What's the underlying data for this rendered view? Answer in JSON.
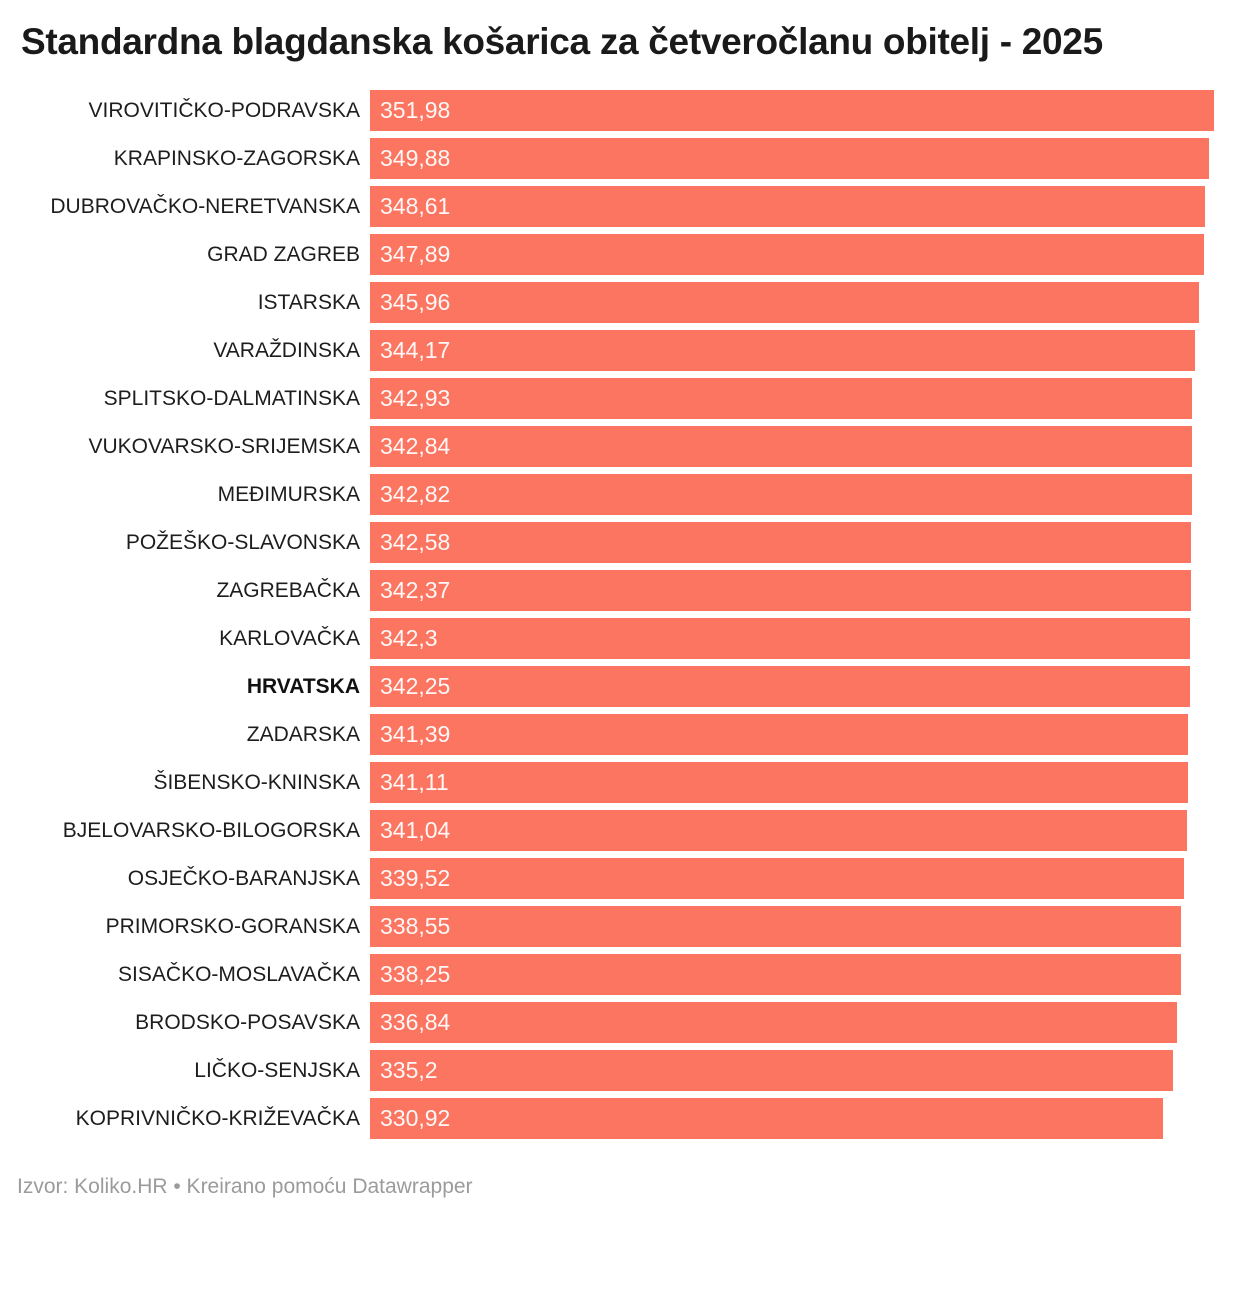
{
  "header": {
    "title": "Standardna blagdanska košarica za četveročlanu obitelj - 2025"
  },
  "footer": {
    "attribution": "Izvor: Koliko.HR • Kreirano pomoću Datawrapper"
  },
  "colors": {
    "bar": "#fc7561",
    "title_text": "#1a1a1a",
    "label_text": "#1d1d1d",
    "value_text": "#ffffff",
    "footer_text": "#9b9b9b"
  },
  "chart_data": {
    "type": "bar",
    "orientation": "horizontal",
    "title": "Standardna blagdanska košarica za četveročlanu obitelj - 2025",
    "xlabel": "",
    "ylabel": "",
    "xlim": [
      0,
      351.98
    ],
    "grid": false,
    "legend": false,
    "bar_color": "#fc7561",
    "bold_category": "HRVATSKA",
    "categories": [
      "VIROVITIČKO-PODRAVSKA",
      "KRAPINSKO-ZAGORSKA",
      "DUBROVAČKO-NERETVANSKA",
      "GRAD ZAGREB",
      "ISTARSKA",
      "VARAŽDINSKA",
      "SPLITSKO-DALMATINSKA",
      "VUKOVARSKO-SRIJEMSKA",
      "MEĐIMURSKA",
      "POŽEŠKO-SLAVONSKA",
      "ZAGREBAČKA",
      "KARLOVAČKA",
      "HRVATSKA",
      "ZADARSKA",
      "ŠIBENSKO-KNINSKA",
      "BJELOVARSKO-BILOGORSKA",
      "OSJEČKO-BARANJSKA",
      "PRIMORSKO-GORANSKA",
      "SISAČKO-MOSLAVAČKA",
      "BRODSKO-POSAVSKA",
      "LIČKO-SENJSKA",
      "KOPRIVNIČKO-KRIŽEVAČKA"
    ],
    "values": [
      351.98,
      349.88,
      348.61,
      347.89,
      345.96,
      344.17,
      342.93,
      342.84,
      342.82,
      342.58,
      342.37,
      342.3,
      342.25,
      341.39,
      341.11,
      341.04,
      339.52,
      338.55,
      338.25,
      336.84,
      335.2,
      330.92
    ],
    "value_labels": [
      "351,98",
      "349,88",
      "348,61",
      "347,89",
      "345,96",
      "344,17",
      "342,93",
      "342,84",
      "342,82",
      "342,58",
      "342,37",
      "342,3",
      "342,25",
      "341,39",
      "341,11",
      "341,04",
      "339,52",
      "338,55",
      "338,25",
      "336,84",
      "335,2",
      "330,92"
    ]
  }
}
